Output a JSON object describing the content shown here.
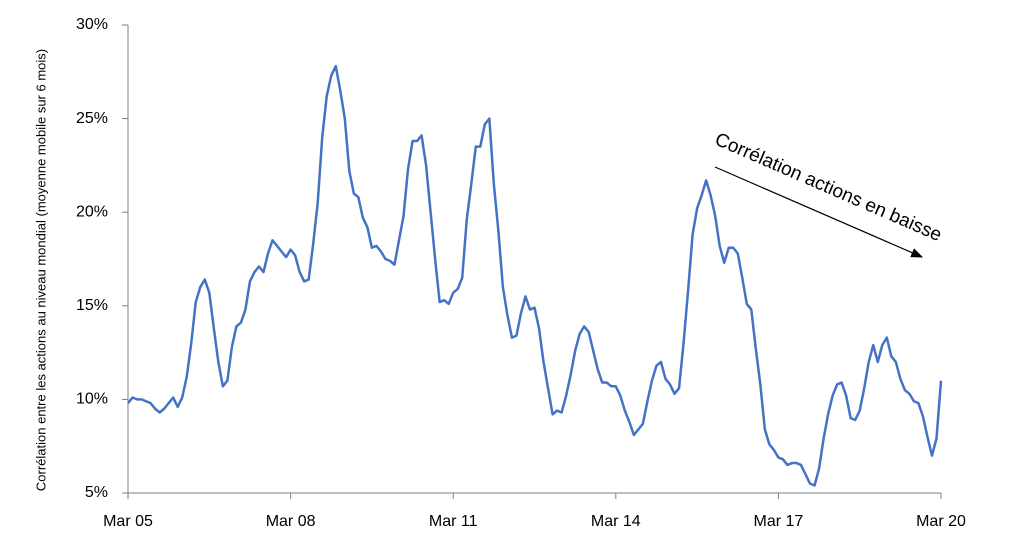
{
  "chart_data": {
    "type": "line",
    "y_axis_label": "Corrélation entre les actions au niveau mondial (moyenne mobile sur 6 mois)",
    "annotation": "Corrélation actions en baisse",
    "categories": [
      "Mar 05",
      null,
      null,
      null,
      null,
      null,
      null,
      null,
      null,
      null,
      null,
      null,
      null,
      null,
      null,
      null,
      null,
      null,
      null,
      null,
      null,
      null,
      null,
      null,
      null,
      null,
      null,
      null,
      null,
      null,
      null,
      null,
      null,
      null,
      null,
      null,
      "Mar 08",
      null,
      null,
      null,
      null,
      null,
      null,
      null,
      null,
      null,
      null,
      null,
      null,
      null,
      null,
      null,
      null,
      null,
      null,
      null,
      null,
      null,
      null,
      null,
      null,
      null,
      null,
      null,
      null,
      null,
      null,
      null,
      null,
      null,
      null,
      null,
      "Mar 11",
      null,
      null,
      null,
      null,
      null,
      null,
      null,
      null,
      null,
      null,
      null,
      null,
      null,
      null,
      null,
      null,
      null,
      null,
      null,
      null,
      null,
      null,
      null,
      null,
      null,
      null,
      null,
      null,
      null,
      null,
      null,
      null,
      null,
      null,
      null,
      "Mar 14",
      null,
      null,
      null,
      null,
      null,
      null,
      null,
      null,
      null,
      null,
      null,
      null,
      null,
      null,
      null,
      null,
      null,
      null,
      null,
      null,
      null,
      null,
      null,
      null,
      null,
      null,
      null,
      null,
      null,
      null,
      null,
      null,
      null,
      null,
      null,
      "Mar 17",
      null,
      null,
      null,
      null,
      null,
      null,
      null,
      null,
      null,
      null,
      null,
      null,
      null,
      null,
      null,
      null,
      null,
      null,
      null,
      null,
      null,
      null,
      null,
      null,
      null,
      null,
      null,
      null,
      null,
      null,
      null,
      null,
      null,
      null,
      null,
      "Mar 20"
    ],
    "series": [
      {
        "color": "#4472c4",
        "values": [
          9.8,
          10.1,
          10.0,
          10.0,
          9.9,
          9.8,
          9.5,
          9.3,
          9.5,
          9.8,
          10.1,
          9.6,
          10.1,
          11.2,
          13.0,
          15.2,
          16.0,
          16.4,
          15.7,
          13.8,
          12.0,
          10.7,
          11.0,
          12.8,
          13.9,
          14.1,
          14.8,
          16.3,
          16.8,
          17.1,
          16.8,
          17.8,
          18.5,
          18.2,
          17.9,
          17.6,
          18.0,
          17.7,
          16.8,
          16.3,
          16.4,
          18.3,
          20.5,
          24.0,
          26.2,
          27.3,
          27.8,
          26.5,
          25.0,
          22.2,
          21.0,
          20.8,
          19.7,
          19.2,
          18.1,
          18.2,
          17.9,
          17.5,
          17.4,
          17.2,
          18.5,
          19.8,
          22.3,
          23.8,
          23.8,
          24.1,
          22.5,
          20.0,
          17.5,
          15.2,
          15.3,
          15.1,
          15.7,
          15.9,
          16.5,
          19.6,
          21.5,
          23.5,
          23.5,
          24.7,
          25.0,
          21.5,
          19.0,
          16.0,
          14.5,
          13.3,
          13.4,
          14.6,
          15.5,
          14.8,
          14.9,
          13.8,
          12.0,
          10.6,
          9.2,
          9.4,
          9.3,
          10.2,
          11.3,
          12.6,
          13.5,
          13.9,
          13.6,
          12.6,
          11.6,
          10.9,
          10.9,
          10.7,
          10.7,
          10.2,
          9.4,
          8.8,
          8.1,
          8.4,
          8.7,
          9.9,
          11.0,
          11.8,
          12.0,
          11.1,
          10.8,
          10.3,
          10.6,
          13.0,
          15.8,
          18.8,
          20.2,
          20.9,
          21.7,
          20.9,
          19.8,
          18.2,
          17.3,
          18.1,
          18.1,
          17.8,
          16.5,
          15.1,
          14.8,
          12.7,
          10.8,
          8.4,
          7.6,
          7.3,
          6.9,
          6.8,
          6.5,
          6.6,
          6.6,
          6.5,
          6.0,
          5.5,
          5.4,
          6.3,
          7.9,
          9.2,
          10.2,
          10.8,
          10.9,
          10.2,
          9.0,
          8.9,
          9.4,
          10.6,
          12.0,
          12.9,
          12.0,
          12.9,
          13.3,
          12.3,
          12.0,
          11.1,
          10.5,
          10.3,
          9.9,
          9.8,
          9.1,
          8.0,
          7.0,
          7.9,
          11.0
        ]
      }
    ],
    "ylim": [
      5,
      30
    ],
    "yticks": [
      {
        "value": 5,
        "label": "5%"
      },
      {
        "value": 10,
        "label": "10%"
      },
      {
        "value": 15,
        "label": "15%"
      },
      {
        "value": 20,
        "label": "20%"
      },
      {
        "value": 25,
        "label": "25%"
      },
      {
        "value": 30,
        "label": "30%"
      }
    ],
    "grid": false
  }
}
